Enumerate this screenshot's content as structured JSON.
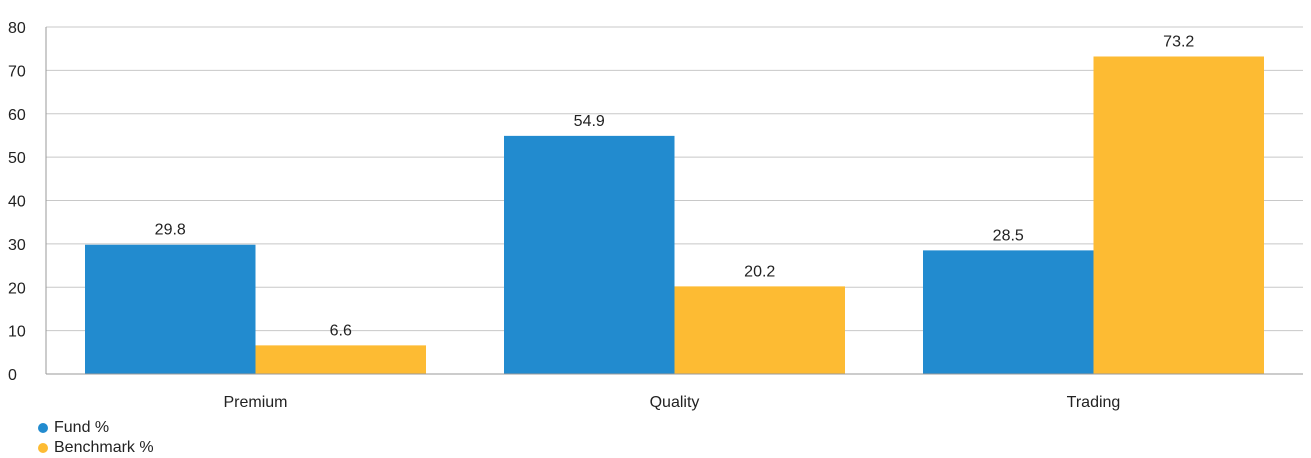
{
  "chart_data": {
    "type": "bar",
    "categories": [
      "Premium",
      "Quality",
      "Trading"
    ],
    "series": [
      {
        "name": "Fund %",
        "color": "#228bcf",
        "values": [
          29.8,
          54.9,
          28.5
        ]
      },
      {
        "name": "Benchmark %",
        "color": "#fdbb33",
        "values": [
          6.6,
          20.2,
          73.2
        ]
      }
    ],
    "ylim": [
      0,
      80
    ],
    "yticks": [
      0,
      10,
      20,
      30,
      40,
      50,
      60,
      70,
      80
    ],
    "grid": true,
    "legend": "bottom-left",
    "title": "",
    "xlabel": "",
    "ylabel": ""
  }
}
